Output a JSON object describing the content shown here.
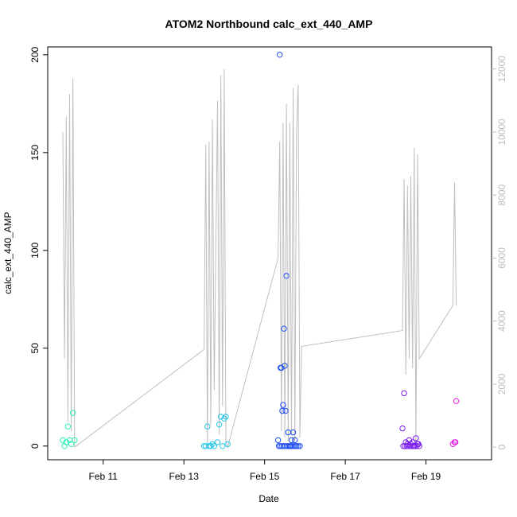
{
  "chart_data": {
    "type": "scatter",
    "title": "ATOM2 Northbound calc_ext_440_AMP",
    "xlabel": "Date",
    "ylabel": "calc_ext_440_AMP",
    "xlim": [
      "2024-02-09T15:00",
      "2024-02-20T15:00"
    ],
    "ylim": [
      -7,
      204
    ],
    "y2lim": [
      -400,
      12700
    ],
    "x_ticks": [
      "2024-02-11",
      "2024-02-13",
      "2024-02-15",
      "2024-02-17",
      "2024-02-19"
    ],
    "x_tick_labels": [
      "Feb 11",
      "Feb 13",
      "Feb 15",
      "Feb 17",
      "Feb 19"
    ],
    "y_ticks": [
      0,
      50,
      100,
      150,
      200
    ],
    "y2_ticks": [
      0,
      2000,
      4000,
      6000,
      8000,
      10000,
      12000
    ],
    "grid": false,
    "legend": "none",
    "secondary_line_color": "#bfbfbf",
    "secondary_series": [
      [
        "2024-02-10T00:00",
        10000
      ],
      [
        "2024-02-10T01:00",
        2800
      ],
      [
        "2024-02-10T02:00",
        10500
      ],
      [
        "2024-02-10T03:00",
        800
      ],
      [
        "2024-02-10T04:00",
        11200
      ],
      [
        "2024-02-10T05:00",
        500
      ],
      [
        "2024-02-10T06:00",
        11700
      ],
      [
        "2024-02-10T07:00",
        0
      ],
      [
        "2024-02-13T12:00",
        3100
      ],
      [
        "2024-02-13T13:00",
        9600
      ],
      [
        "2024-02-13T14:00",
        0
      ],
      [
        "2024-02-13T15:00",
        9700
      ],
      [
        "2024-02-13T16:00",
        700
      ],
      [
        "2024-02-13T17:00",
        10400
      ],
      [
        "2024-02-13T18:00",
        1800
      ],
      [
        "2024-02-13T20:00",
        11000
      ],
      [
        "2024-02-13T21:00",
        400
      ],
      [
        "2024-02-13T22:00",
        11800
      ],
      [
        "2024-02-13T23:00",
        1300
      ],
      [
        "2024-02-14T00:00",
        12000
      ],
      [
        "2024-02-14T01:00",
        200
      ],
      [
        "2024-02-14T02:00",
        0
      ],
      [
        "2024-02-15T08:00",
        6000
      ],
      [
        "2024-02-15T09:00",
        9700
      ],
      [
        "2024-02-15T10:00",
        500
      ],
      [
        "2024-02-15T11:00",
        10300
      ],
      [
        "2024-02-15T12:00",
        300
      ],
      [
        "2024-02-15T13:00",
        10900
      ],
      [
        "2024-02-15T14:00",
        200
      ],
      [
        "2024-02-15T15:00",
        10300
      ],
      [
        "2024-02-15T16:00",
        400
      ],
      [
        "2024-02-15T17:00",
        11400
      ],
      [
        "2024-02-15T18:00",
        200
      ],
      [
        "2024-02-15T19:00",
        10000
      ],
      [
        "2024-02-15T20:00",
        11500
      ],
      [
        "2024-02-15T21:00",
        300
      ],
      [
        "2024-02-15T22:00",
        3200
      ],
      [
        "2024-02-18T10:00",
        3700
      ],
      [
        "2024-02-18T11:00",
        8500
      ],
      [
        "2024-02-18T12:00",
        2300
      ],
      [
        "2024-02-18T13:00",
        8300
      ],
      [
        "2024-02-18T14:00",
        2800
      ],
      [
        "2024-02-18T15:00",
        8600
      ],
      [
        "2024-02-18T16:00",
        2500
      ],
      [
        "2024-02-18T17:00",
        9500
      ],
      [
        "2024-02-18T18:00",
        100
      ],
      [
        "2024-02-18T19:00",
        9300
      ],
      [
        "2024-02-18T20:00",
        2800
      ],
      [
        "2024-02-19T16:00",
        4500
      ],
      [
        "2024-02-19T17:00",
        8400
      ],
      [
        "2024-02-19T18:00",
        4500
      ]
    ],
    "series": [
      {
        "color": "#2ef0b5",
        "points": [
          [
            "2024-02-10T00:00",
            3
          ],
          [
            "2024-02-10T01:00",
            0
          ],
          [
            "2024-02-10T02:00",
            2
          ],
          [
            "2024-02-10T03:00",
            10
          ],
          [
            "2024-02-10T04:00",
            3
          ],
          [
            "2024-02-10T05:00",
            1
          ],
          [
            "2024-02-10T06:00",
            17
          ],
          [
            "2024-02-10T07:00",
            3
          ]
        ]
      },
      {
        "color": "#22c8e8",
        "points": [
          [
            "2024-02-13T12:00",
            0
          ],
          [
            "2024-02-13T13:00",
            0
          ],
          [
            "2024-02-13T14:00",
            10
          ],
          [
            "2024-02-13T15:00",
            0
          ],
          [
            "2024-02-13T16:00",
            0
          ],
          [
            "2024-02-13T17:00",
            1
          ],
          [
            "2024-02-13T18:00",
            0
          ],
          [
            "2024-02-13T20:00",
            2
          ],
          [
            "2024-02-13T21:00",
            11
          ],
          [
            "2024-02-13T22:00",
            15
          ],
          [
            "2024-02-13T23:00",
            0
          ],
          [
            "2024-02-14T00:00",
            14
          ],
          [
            "2024-02-14T01:00",
            15
          ],
          [
            "2024-02-14T02:00",
            1
          ]
        ]
      },
      {
        "color": "#1f4ef2",
        "points": [
          [
            "2024-02-15T09:00",
            200
          ],
          [
            "2024-02-15T09:30",
            40
          ],
          [
            "2024-02-15T10:00",
            40
          ],
          [
            "2024-02-15T10:30",
            18
          ],
          [
            "2024-02-15T11:00",
            21
          ],
          [
            "2024-02-15T11:30",
            60
          ],
          [
            "2024-02-15T12:00",
            41
          ],
          [
            "2024-02-15T12:30",
            18
          ],
          [
            "2024-02-15T13:00",
            87
          ],
          [
            "2024-02-15T14:00",
            7
          ],
          [
            "2024-02-15T16:00",
            3
          ],
          [
            "2024-02-15T17:00",
            7
          ],
          [
            "2024-02-15T18:00",
            3
          ],
          [
            "2024-02-15T08:00",
            3
          ],
          [
            "2024-02-15T08:30",
            0
          ],
          [
            "2024-02-15T09:15",
            0
          ],
          [
            "2024-02-15T10:15",
            0
          ],
          [
            "2024-02-15T11:15",
            0
          ],
          [
            "2024-02-15T12:15",
            0
          ],
          [
            "2024-02-15T13:15",
            0
          ],
          [
            "2024-02-15T14:15",
            0
          ],
          [
            "2024-02-15T15:00",
            0
          ],
          [
            "2024-02-15T15:30",
            0
          ],
          [
            "2024-02-15T16:15",
            0
          ],
          [
            "2024-02-15T17:15",
            0
          ],
          [
            "2024-02-15T18:15",
            0
          ],
          [
            "2024-02-15T19:00",
            0
          ],
          [
            "2024-02-15T20:00",
            0
          ],
          [
            "2024-02-15T21:00",
            0
          ]
        ]
      },
      {
        "color": "#7a1ef0",
        "points": [
          [
            "2024-02-18T10:00",
            9
          ],
          [
            "2024-02-18T11:00",
            27
          ],
          [
            "2024-02-18T12:00",
            2
          ],
          [
            "2024-02-18T13:00",
            1
          ],
          [
            "2024-02-18T14:00",
            3
          ],
          [
            "2024-02-18T15:00",
            1
          ],
          [
            "2024-02-18T16:00",
            2
          ],
          [
            "2024-02-18T17:00",
            0
          ],
          [
            "2024-02-18T18:00",
            4
          ],
          [
            "2024-02-18T19:00",
            1
          ],
          [
            "2024-02-18T20:00",
            0
          ],
          [
            "2024-02-18T10:30",
            0
          ],
          [
            "2024-02-18T11:30",
            0
          ],
          [
            "2024-02-18T12:30",
            0
          ],
          [
            "2024-02-18T13:30",
            0
          ],
          [
            "2024-02-18T14:30",
            0
          ],
          [
            "2024-02-18T15:30",
            0
          ],
          [
            "2024-02-18T16:30",
            0
          ],
          [
            "2024-02-18T17:30",
            0
          ],
          [
            "2024-02-18T18:30",
            0
          ],
          [
            "2024-02-18T19:30",
            1
          ]
        ]
      },
      {
        "color": "#ea1ee0",
        "points": [
          [
            "2024-02-19T16:00",
            1
          ],
          [
            "2024-02-19T17:00",
            2
          ],
          [
            "2024-02-19T17:30",
            2
          ],
          [
            "2024-02-19T18:00",
            23
          ]
        ]
      }
    ]
  }
}
